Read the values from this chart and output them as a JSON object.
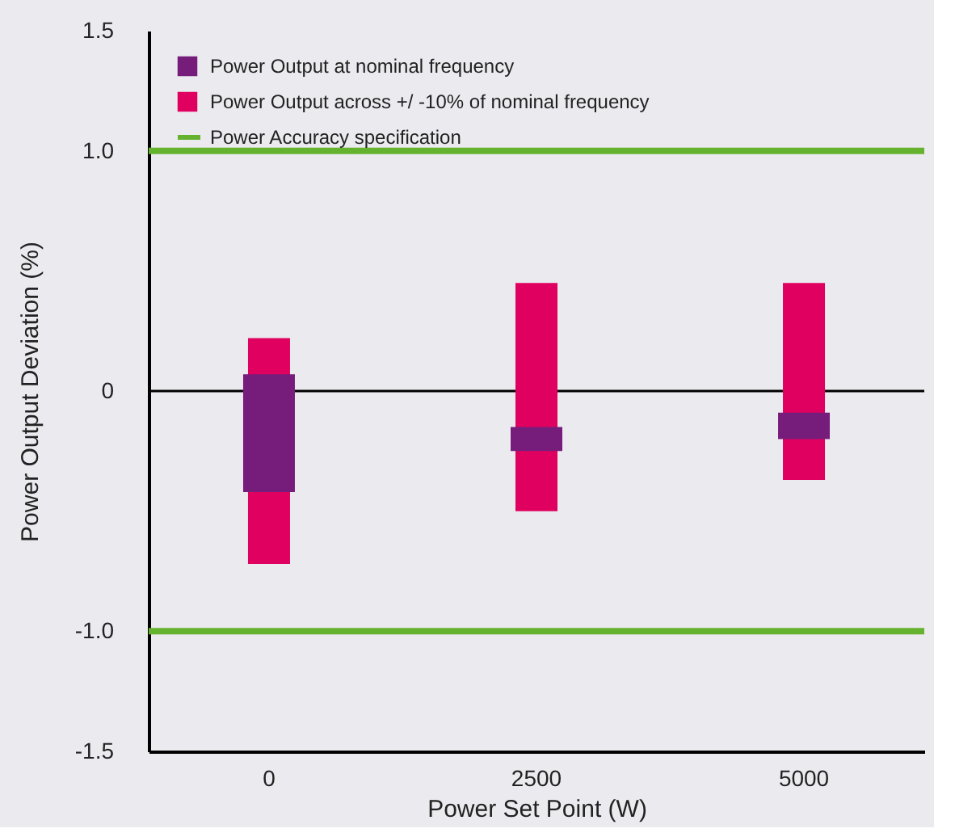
{
  "chart_data": {
    "type": "bar",
    "xlabel": "Power Set Point (W)",
    "ylabel": "Power Output Deviation (%)",
    "categories": [
      "0",
      "2500",
      "5000"
    ],
    "series": [
      {
        "name": "Power Output at nominal frequency",
        "color": "#761d7b",
        "base": [
          -0.42,
          -0.25,
          -0.2
        ],
        "values": [
          0.49,
          0.1,
          0.11
        ]
      },
      {
        "name": "Power Output across +/ -10% of nominal frequency",
        "color": "#e0005f",
        "base": [
          -0.72,
          -0.5,
          -0.37
        ],
        "values": [
          0.94,
          0.95,
          0.82
        ]
      }
    ],
    "ylim": [
      -1.5,
      1.5
    ],
    "yticks": [
      {
        "value": -1.5,
        "label": "-1.5"
      },
      {
        "value": -1,
        "label": "-1.0"
      },
      0,
      {
        "value": 1,
        "label": "1.0"
      },
      1.5
    ],
    "ref_lines": [
      {
        "axis": "y",
        "value": 1,
        "label": "Power Accuracy specification",
        "color": "#64b22e"
      },
      {
        "axis": "y",
        "value": -1,
        "color": "#64b22e"
      },
      {
        "axis": "y",
        "value": 0,
        "color": "#000000"
      }
    ],
    "legend": "top left",
    "grid": false
  }
}
